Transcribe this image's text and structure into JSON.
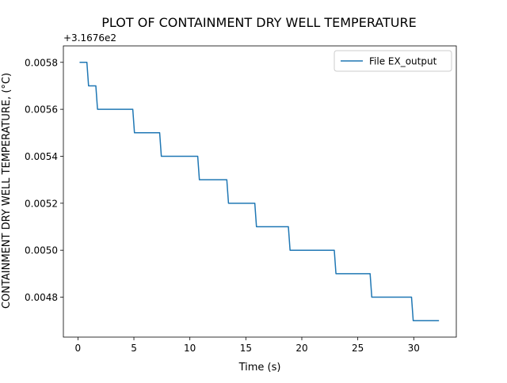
{
  "chart_data": {
    "type": "line",
    "title": "PLOT OF CONTAINMENT DRY WELL TEMPERATURE",
    "xlabel": "Time (s)",
    "ylabel": "CONTAINMENT DRY WELL TEMPERATURE, (°C)",
    "offset_text": "+3.1676e2",
    "y_offset": 316.76,
    "xlim": [
      -1.3,
      33.8
    ],
    "ylim": [
      0.00463,
      0.00587
    ],
    "x_ticks": [
      0,
      5,
      10,
      15,
      20,
      25,
      30
    ],
    "x_tick_labels": [
      "0",
      "5",
      "10",
      "15",
      "20",
      "25",
      "30"
    ],
    "y_ticks": [
      0.0048,
      0.005,
      0.0052,
      0.0054,
      0.0056,
      0.0058
    ],
    "y_tick_labels": [
      "0.0048",
      "0.0050",
      "0.0052",
      "0.0054",
      "0.0056",
      "0.0058"
    ],
    "grid": false,
    "legend_position": "top-right",
    "series": [
      {
        "name": "File EX_output",
        "color": "#1f77b4",
        "x": [
          0.2,
          0.8,
          0.95,
          1.6,
          1.75,
          4.9,
          5.05,
          7.3,
          7.45,
          10.7,
          10.85,
          13.3,
          13.45,
          15.8,
          15.95,
          18.8,
          18.95,
          22.9,
          23.05,
          26.1,
          26.25,
          29.8,
          29.95,
          32.2
        ],
        "y": [
          0.0058,
          0.0058,
          0.0057,
          0.0057,
          0.0056,
          0.0056,
          0.0055,
          0.0055,
          0.0054,
          0.0054,
          0.0053,
          0.0053,
          0.0052,
          0.0052,
          0.0051,
          0.0051,
          0.005,
          0.005,
          0.0049,
          0.0049,
          0.0048,
          0.0048,
          0.0047,
          0.0047
        ]
      }
    ]
  }
}
